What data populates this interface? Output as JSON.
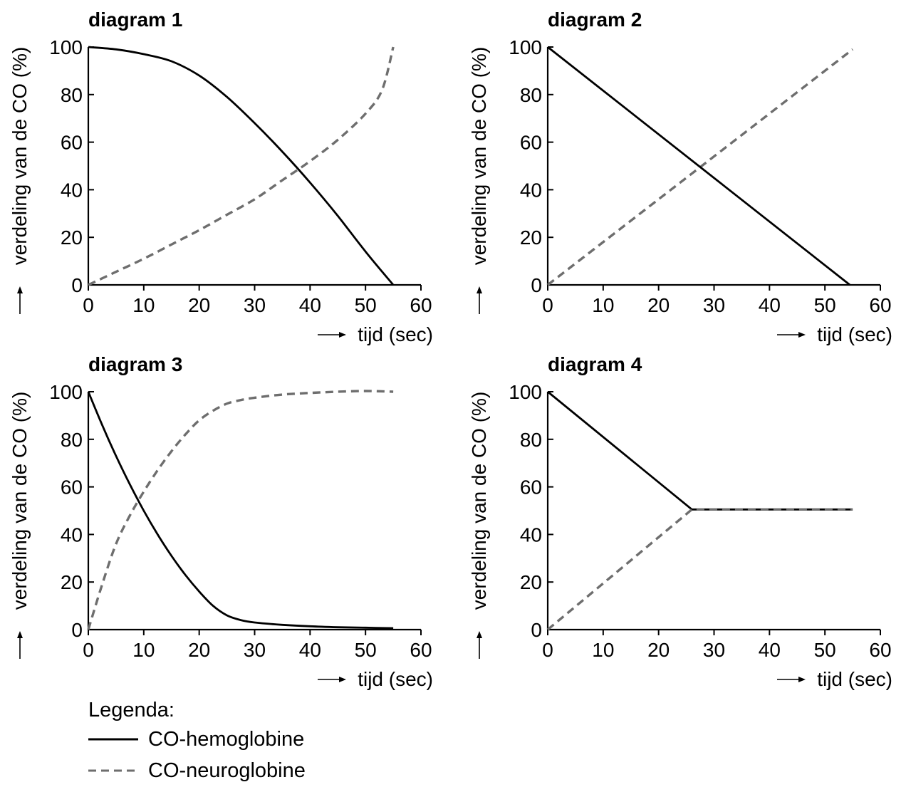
{
  "axis_common": {
    "ylabel": "verdeling van de CO (%)",
    "xlabel": "tijd (sec)",
    "x_ticks": [
      0,
      10,
      20,
      30,
      40,
      50,
      60
    ],
    "y_ticks": [
      0,
      20,
      40,
      60,
      80,
      100
    ],
    "xlim": [
      0,
      60
    ],
    "ylim": [
      0,
      100
    ]
  },
  "colors": {
    "hemoglobine": "#000000",
    "neuroglobine": "#6e6e6e"
  },
  "chart_data": [
    {
      "type": "line",
      "title": "diagram 1",
      "xlabel": "tijd (sec)",
      "ylabel": "verdeling van de CO (%)",
      "xlim": [
        0,
        60
      ],
      "ylim": [
        0,
        100
      ],
      "series": [
        {
          "name": "CO-hemoglobine",
          "style": "solid",
          "x": [
            0,
            5,
            10,
            15,
            20,
            25,
            30,
            35,
            40,
            45,
            50,
            55
          ],
          "y": [
            100,
            99,
            97,
            94,
            88,
            79,
            68,
            56,
            43,
            29,
            14,
            0
          ]
        },
        {
          "name": "CO-neuroglobine",
          "style": "dashed",
          "x": [
            0,
            5,
            10,
            15,
            20,
            25,
            30,
            35,
            40,
            45,
            50,
            53,
            55
          ],
          "y": [
            0,
            5.5,
            11,
            17,
            23,
            29.5,
            36,
            44,
            52,
            61,
            72,
            82,
            100
          ]
        }
      ]
    },
    {
      "type": "line",
      "title": "diagram 2",
      "xlabel": "tijd (sec)",
      "ylabel": "verdeling van de CO (%)",
      "xlim": [
        0,
        60
      ],
      "ylim": [
        0,
        100
      ],
      "series": [
        {
          "name": "CO-hemoglobine",
          "style": "solid",
          "x": [
            0,
            54.5
          ],
          "y": [
            100,
            0
          ]
        },
        {
          "name": "CO-neuroglobine",
          "style": "dashed",
          "x": [
            0,
            55
          ],
          "y": [
            0,
            99
          ]
        }
      ]
    },
    {
      "type": "line",
      "title": "diagram 3",
      "xlabel": "tijd (sec)",
      "ylabel": "verdeling van de CO (%)",
      "xlim": [
        0,
        60
      ],
      "ylim": [
        0,
        100
      ],
      "series": [
        {
          "name": "CO-hemoglobine",
          "style": "solid",
          "x": [
            0,
            2.5,
            5,
            7.5,
            10,
            12.5,
            15,
            17.5,
            20,
            22.5,
            25,
            27.5,
            30,
            35,
            40,
            45,
            50,
            55
          ],
          "y": [
            100,
            86,
            73,
            61,
            50,
            40,
            31,
            23,
            16,
            10,
            6,
            4,
            3,
            2,
            1.4,
            1,
            0.8,
            0.6
          ]
        },
        {
          "name": "CO-neuroglobine",
          "style": "dashed",
          "x": [
            0,
            2.5,
            5,
            7.5,
            10,
            12.5,
            15,
            17.5,
            20,
            22.5,
            25,
            27.5,
            30,
            35,
            40,
            45,
            50,
            55
          ],
          "y": [
            0,
            19,
            36,
            48,
            58,
            67,
            75,
            82,
            88,
            92,
            95,
            96.5,
            97.5,
            98.8,
            99.5,
            100,
            100.3,
            100
          ]
        }
      ]
    },
    {
      "type": "line",
      "title": "diagram 4",
      "xlabel": "tijd (sec)",
      "ylabel": "verdeling van de CO (%)",
      "xlim": [
        0,
        60
      ],
      "ylim": [
        0,
        100
      ],
      "series": [
        {
          "name": "CO-hemoglobine",
          "style": "solid",
          "x": [
            0,
            26,
            55
          ],
          "y": [
            100,
            50.5,
            50.5
          ]
        },
        {
          "name": "CO-neuroglobine",
          "style": "dashed",
          "x": [
            0,
            26,
            55
          ],
          "y": [
            0,
            50.5,
            50.5
          ]
        }
      ]
    }
  ],
  "legend": {
    "title": "Legenda:",
    "items": [
      {
        "label": "CO-hemoglobine",
        "style": "solid"
      },
      {
        "label": "CO-neuroglobine",
        "style": "dashed"
      }
    ]
  }
}
